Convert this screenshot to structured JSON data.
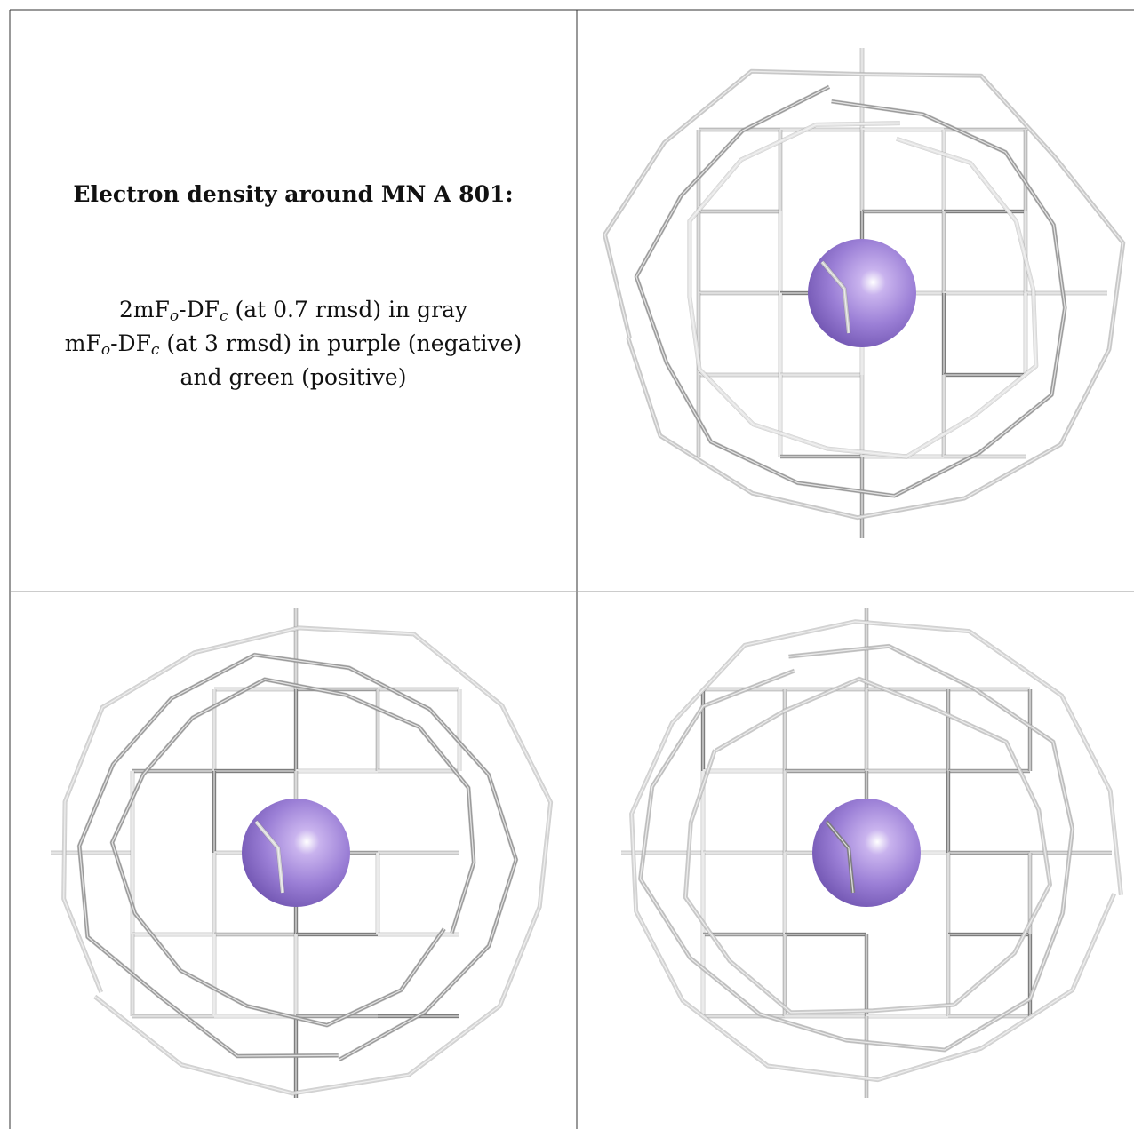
{
  "panel": {
    "title": "Electron density around MN A 801:",
    "lines": [
      [
        {
          "text": "2mF"
        },
        {
          "text": "o",
          "sub": true
        },
        {
          "text": "-DF"
        },
        {
          "text": "c",
          "sub": true
        },
        {
          "text": " (at 0.7 rmsd) in gray"
        }
      ],
      [
        {
          "text": "mF"
        },
        {
          "text": "o",
          "sub": true
        },
        {
          "text": "-DF"
        },
        {
          "text": "c",
          "sub": true
        },
        {
          "text": " (at 3 rmsd) in purple (negative)"
        }
      ],
      [
        {
          "text": "and green (positive)"
        }
      ]
    ]
  }
}
